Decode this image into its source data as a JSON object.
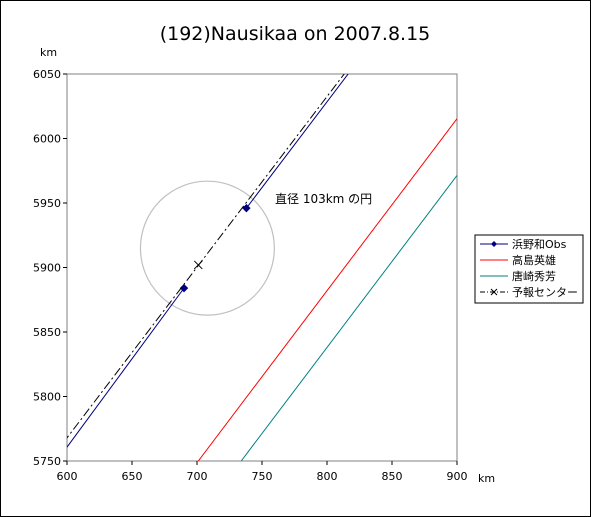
{
  "chart_data": {
    "type": "line",
    "title": "(192)Nausikaa on 2007.8.15",
    "xlabel": "km",
    "ylabel": "km",
    "xlim": [
      600,
      900
    ],
    "ylim": [
      5750,
      6050
    ],
    "xticks": [
      600,
      650,
      700,
      750,
      800,
      850,
      900
    ],
    "yticks": [
      5750,
      5800,
      5850,
      5900,
      5950,
      6000,
      6050
    ],
    "grid": false,
    "legend_position": "right",
    "series": [
      {
        "name": "浜野和Obs",
        "color": "#000080",
        "style": "solid",
        "marker": "diamond",
        "segments": [
          {
            "x": [
              598,
              690
            ],
            "y": [
              5758,
              5884
            ]
          },
          {
            "x": [
              738,
              820
            ],
            "y": [
              5946,
              6055
            ]
          }
        ],
        "points": [
          {
            "x": 690,
            "y": 5884
          },
          {
            "x": 738,
            "y": 5946
          }
        ]
      },
      {
        "name": "高島英雄",
        "color": "#ff0000",
        "style": "solid",
        "segments": [
          {
            "x": [
              701,
              902
            ],
            "y": [
              5750,
              6018
            ]
          }
        ]
      },
      {
        "name": "唐崎秀芳",
        "color": "#008080",
        "style": "solid",
        "segments": [
          {
            "x": [
              734,
              902
            ],
            "y": [
              5750,
              5974
            ]
          }
        ]
      },
      {
        "name": "予報センター",
        "color": "#000000",
        "style": "dashdot",
        "marker": "x",
        "segments": [
          {
            "x": [
              597,
              817
            ],
            "y": [
              5764,
              6055
            ]
          }
        ],
        "points": [
          {
            "x": 701,
            "y": 5902
          }
        ]
      }
    ],
    "annotations": [
      {
        "text": "直径 103km の円",
        "x": 760,
        "y": 5950
      },
      {
        "shape": "circle",
        "cx": 708,
        "cy": 5915,
        "r": 51.5,
        "color": "#c0c0c0"
      }
    ]
  }
}
